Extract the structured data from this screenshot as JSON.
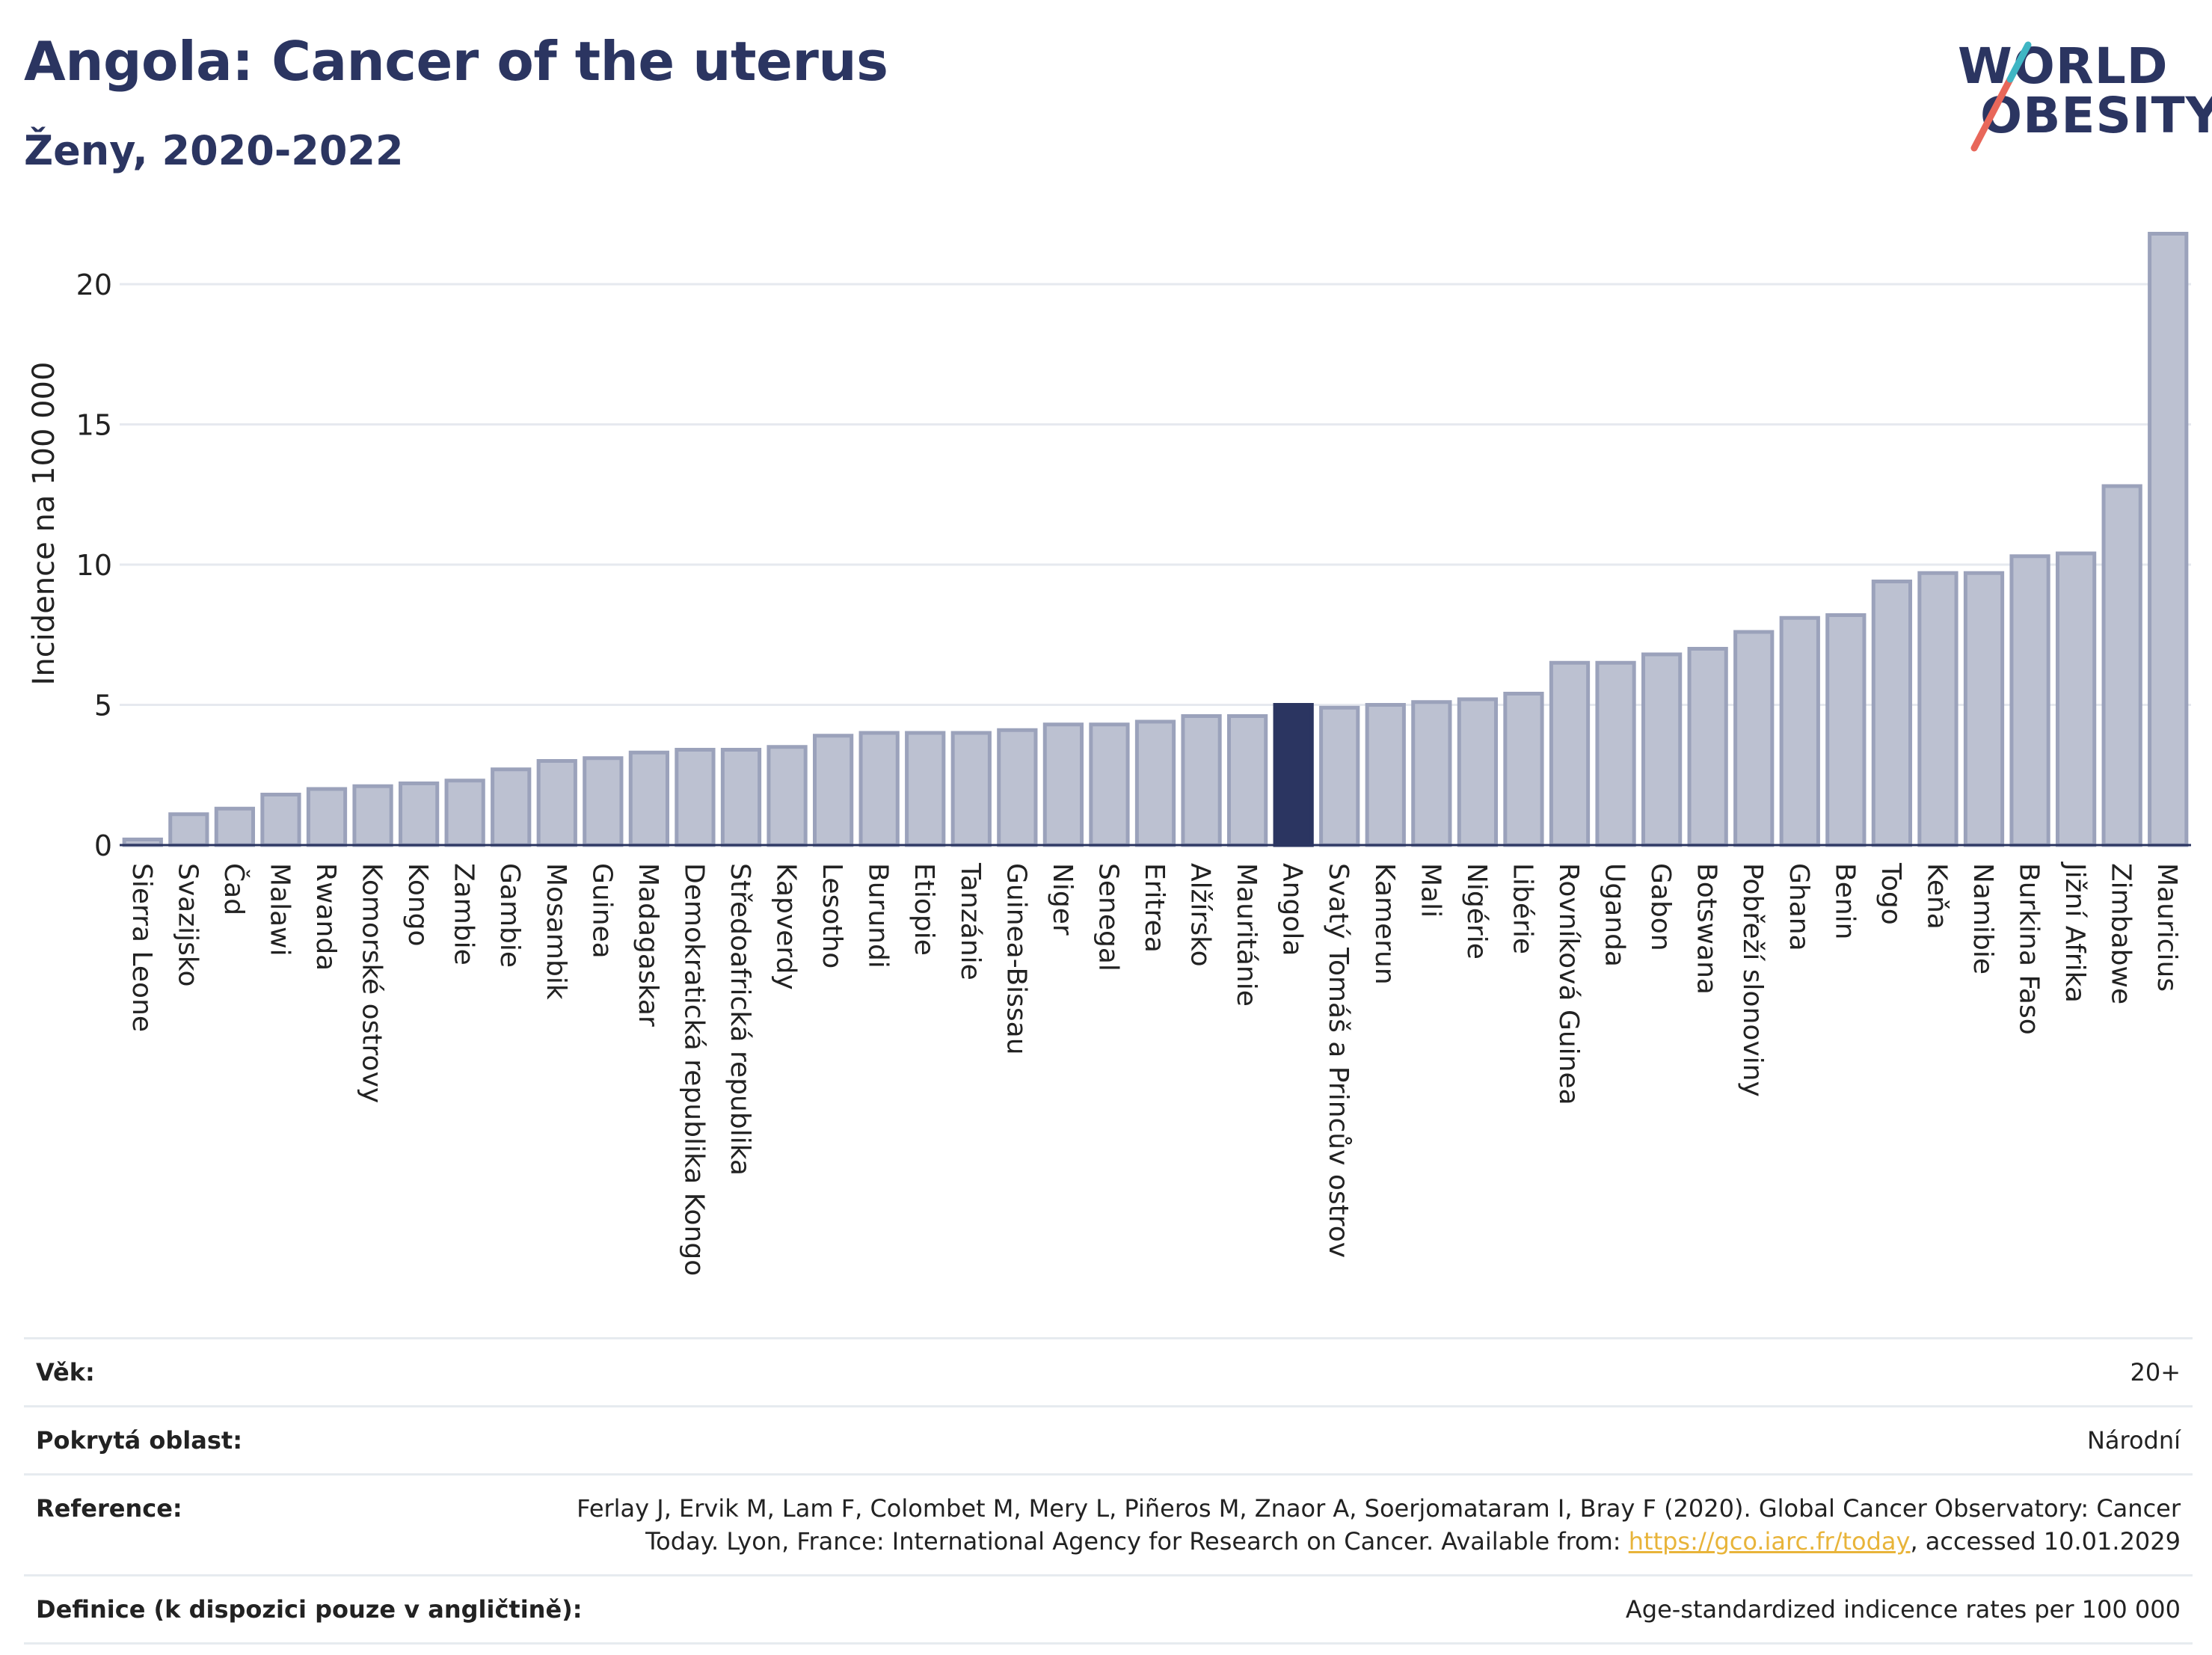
{
  "header": {
    "title": "Angola: Cancer of the uterus",
    "subtitle": "Ženy, 2020-2022"
  },
  "logo": {
    "line1": "WORLD",
    "line2": "OBESITY",
    "colors": {
      "text": "#2b3561",
      "slash_red": "#e8675a",
      "slash_teal": "#3fb6c4"
    }
  },
  "colors": {
    "bar": "#bcc1d1",
    "bar_stroke": "#9ba2bb",
    "highlight": "#2b3561",
    "grid": "#e6e9ef",
    "axis": "#2b3561"
  },
  "chart_data": {
    "type": "bar",
    "title": "Angola: Cancer of the uterus",
    "subtitle": "Ženy, 2020-2022",
    "ylabel": "Incidence na 100 000",
    "xlabel": "",
    "ylim": [
      0,
      22
    ],
    "yticks": [
      0,
      5,
      10,
      15,
      20
    ],
    "grid": true,
    "highlight": "Angola",
    "categories": [
      "Sierra Leone",
      "Svazijsko",
      "Čad",
      "Malawi",
      "Rwanda",
      "Komorské ostrovy",
      "Kongo",
      "Zambie",
      "Gambie",
      "Mosambik",
      "Guinea",
      "Madagaskar",
      "Demokratická republika Kongo",
      "Středoafrická republika",
      "Kapverdy",
      "Lesotho",
      "Burundi",
      "Etiopie",
      "Tanzánie",
      "Guinea-Bissau",
      "Niger",
      "Senegal",
      "Eritrea",
      "Alžírsko",
      "Mauritánie",
      "Angola",
      "Svatý Tomáš a Princův ostrov",
      "Kamerun",
      "Mali",
      "Nigérie",
      "Libérie",
      "Rovníková Guinea",
      "Uganda",
      "Gabon",
      "Botswana",
      "Pobřeží slonoviny",
      "Ghana",
      "Benin",
      "Togo",
      "Keňa",
      "Namibie",
      "Burkina Faso",
      "Jižní Afrika",
      "Zimbabwe",
      "Mauricius"
    ],
    "values": [
      0.2,
      1.1,
      1.3,
      1.8,
      2.0,
      2.1,
      2.2,
      2.3,
      2.7,
      3.0,
      3.1,
      3.3,
      3.4,
      3.4,
      3.5,
      3.9,
      4.0,
      4.0,
      4.0,
      4.1,
      4.3,
      4.3,
      4.4,
      4.6,
      4.6,
      5.0,
      4.9,
      5.0,
      5.1,
      5.2,
      5.4,
      6.5,
      6.5,
      6.8,
      7.0,
      7.6,
      8.1,
      8.2,
      9.4,
      9.7,
      9.7,
      10.3,
      10.4,
      12.8,
      21.8
    ]
  },
  "info": {
    "age_label": "Věk:",
    "age_value": "20+",
    "coverage_label": "Pokrytá oblast:",
    "coverage_value": "Národní",
    "reference_label": "Reference:",
    "reference_text_1": "Ferlay J, Ervik M, Lam F, Colombet M, Mery L, Piñeros M, Znaor A, Soerjomataram I, Bray F (2020). Global Cancer Observatory: Cancer Today. Lyon, France: International Agency for Research on Cancer. Available from: ",
    "reference_link": "https://gco.iarc.fr/today",
    "reference_text_2": ", accessed 10.01.2029",
    "definition_label": "Definice (k dispozici pouze v angličtině):",
    "definition_value": "Age-standardized indicence rates per 100 000"
  }
}
